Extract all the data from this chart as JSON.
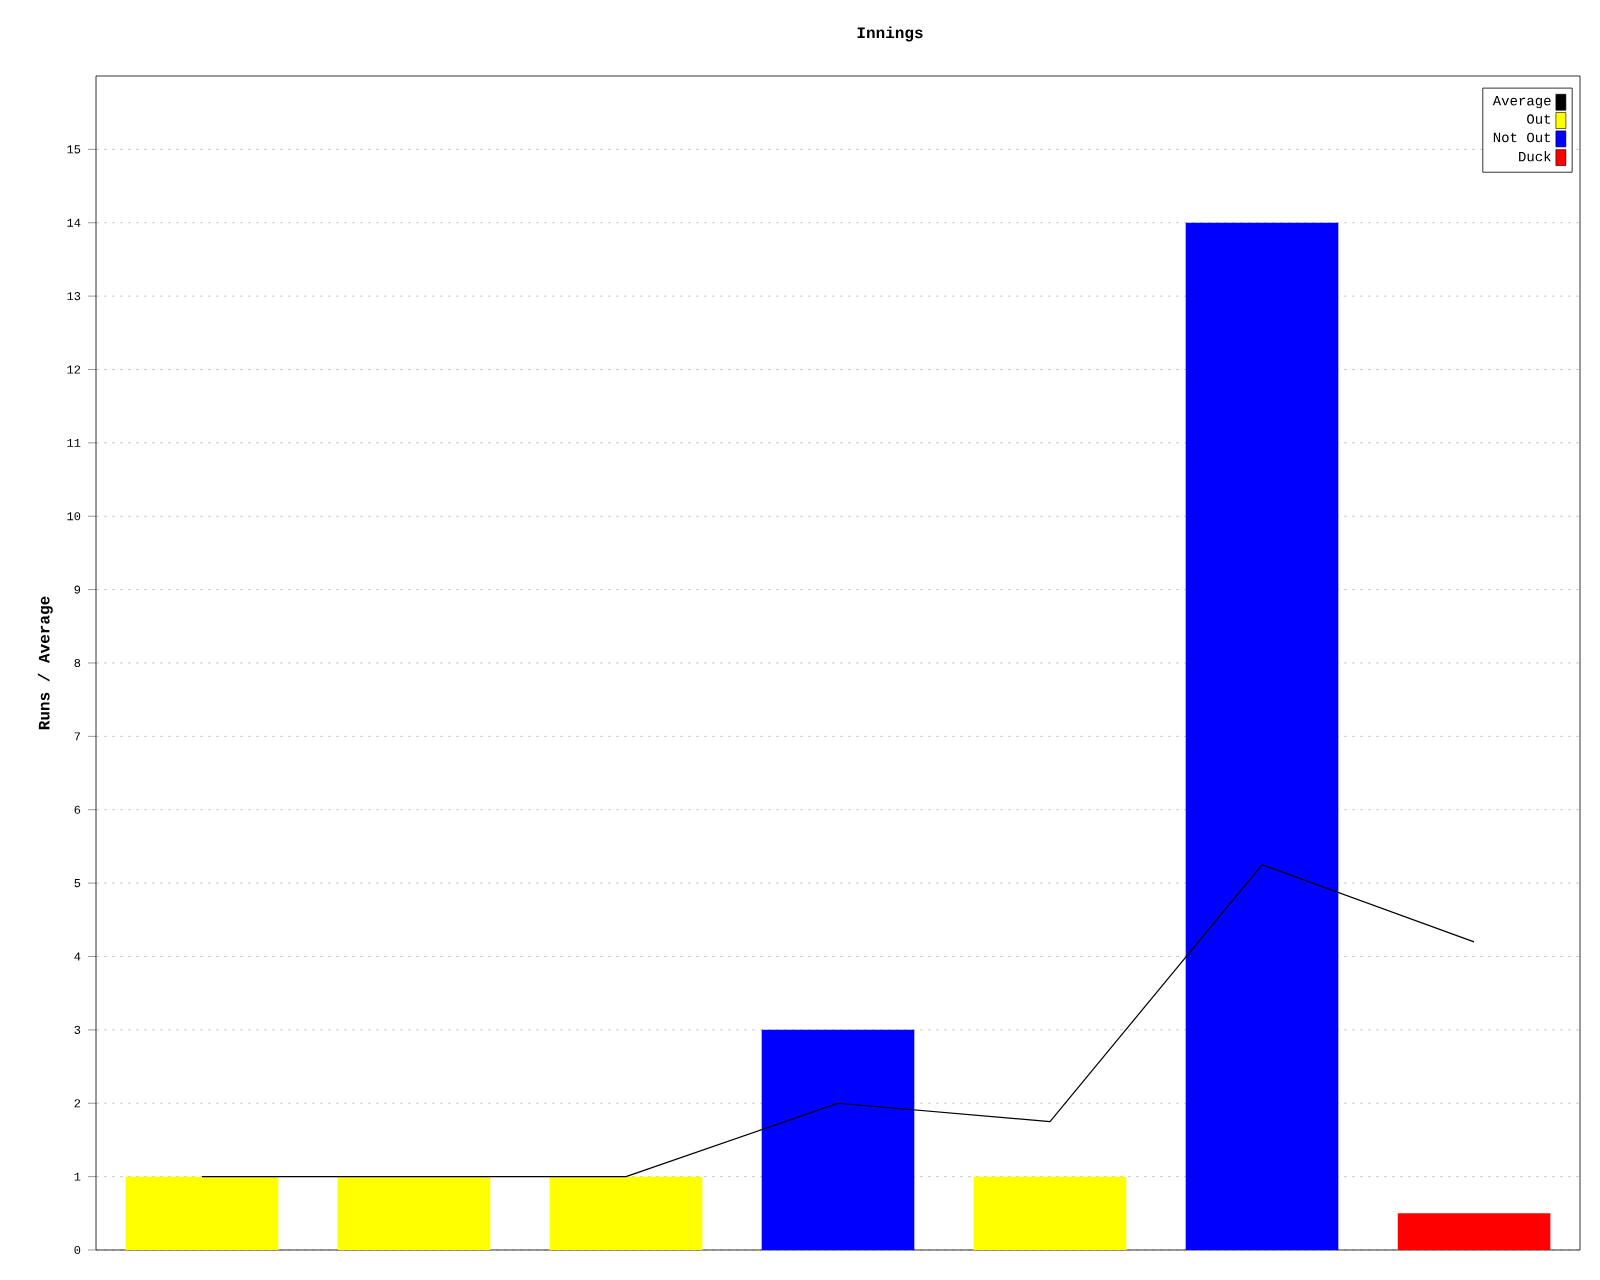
{
  "chart_data": {
    "type": "bar",
    "title": "Innings",
    "ylabel": "Runs / Average",
    "categories": [
      null,
      null,
      null,
      null,
      null,
      null,
      null
    ],
    "series": [
      {
        "name": "Average",
        "type": "line",
        "color": "#000000",
        "values": [
          1,
          1,
          1,
          2,
          1.75,
          5.25,
          4.2
        ]
      },
      {
        "name": "Out",
        "color": "#ffff00",
        "values": [
          1,
          1,
          1,
          null,
          1,
          null,
          null
        ]
      },
      {
        "name": "Not Out",
        "color": "#0000ff",
        "values": [
          null,
          null,
          null,
          3,
          null,
          14,
          null
        ]
      },
      {
        "name": "Duck",
        "color": "#ff0000",
        "values": [
          null,
          null,
          null,
          null,
          null,
          null,
          0.5
        ]
      }
    ],
    "ylim": [
      0,
      16
    ],
    "yticks": [
      0,
      1,
      2,
      3,
      4,
      5,
      6,
      7,
      8,
      9,
      10,
      11,
      12,
      13,
      14,
      15
    ],
    "grid": "y",
    "legend": "top right",
    "marker": "none",
    "line_style": "solid",
    "tick_labels": "y"
  }
}
